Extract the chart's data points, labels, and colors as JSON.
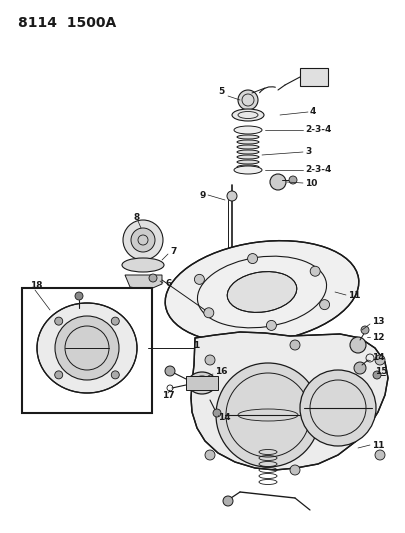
{
  "title": "8114  1500A",
  "bg": "#ffffff",
  "lc": "#1a1a1a",
  "fig_w": 4.05,
  "fig_h": 5.33,
  "dpi": 100,
  "label_fs": 6.5,
  "title_fs": 10
}
